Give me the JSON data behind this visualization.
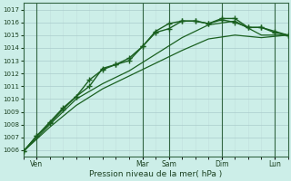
{
  "xlabel": "Pression niveau de la mer( hPa )",
  "ylim": [
    1005.5,
    1017.5
  ],
  "xlim": [
    0,
    30
  ],
  "yticks": [
    1006,
    1007,
    1008,
    1009,
    1010,
    1011,
    1012,
    1013,
    1014,
    1015,
    1016,
    1017
  ],
  "bg_color": "#cceee8",
  "grid_major_color": "#aacccc",
  "grid_minor_color": "#c0dedd",
  "line_color": "#1a6020",
  "vline_color": "#336644",
  "day_positions": [
    1.5,
    13.5,
    16.5,
    22.5,
    28.5
  ],
  "day_names": [
    "Ven",
    "Mar",
    "Sam",
    "Dim",
    "Lun"
  ],
  "series1_x": [
    0,
    1.5,
    3,
    4.5,
    6,
    7.5,
    9,
    10.5,
    12,
    13.5,
    15,
    16.5,
    18,
    19.5,
    21,
    22.5,
    24,
    25.5,
    27,
    28.5,
    30
  ],
  "series1_y": [
    1005.9,
    1007.1,
    1008.1,
    1009.2,
    1010.2,
    1011.5,
    1012.3,
    1012.7,
    1013.0,
    1014.1,
    1015.3,
    1015.9,
    1016.1,
    1016.1,
    1015.9,
    1016.3,
    1016.3,
    1015.6,
    1015.6,
    1015.3,
    1015.0
  ],
  "series2_x": [
    0,
    1.5,
    3,
    4.5,
    6,
    7.5,
    9,
    10.5,
    12,
    13.5,
    15,
    16.5,
    18,
    19.5,
    21,
    22.5,
    24,
    25.5,
    27,
    28.5,
    30
  ],
  "series2_y": [
    1005.9,
    1007.1,
    1008.2,
    1009.3,
    1010.2,
    1011.0,
    1012.4,
    1012.7,
    1013.2,
    1014.1,
    1015.2,
    1015.5,
    1016.1,
    1016.1,
    1015.9,
    1016.2,
    1016.0,
    1015.6,
    1015.6,
    1015.2,
    1015.0
  ],
  "series3_x": [
    0,
    3,
    6,
    9,
    12,
    15,
    18,
    21,
    24,
    27,
    30
  ],
  "series3_y": [
    1005.9,
    1008.0,
    1010.0,
    1011.2,
    1012.2,
    1013.5,
    1014.8,
    1015.8,
    1016.1,
    1015.0,
    1015.0
  ],
  "series4_x": [
    0,
    3,
    6,
    9,
    12,
    15,
    18,
    21,
    24,
    27,
    30
  ],
  "series4_y": [
    1005.9,
    1007.8,
    1009.5,
    1010.8,
    1011.8,
    1012.8,
    1013.8,
    1014.7,
    1015.0,
    1014.8,
    1015.0
  ]
}
